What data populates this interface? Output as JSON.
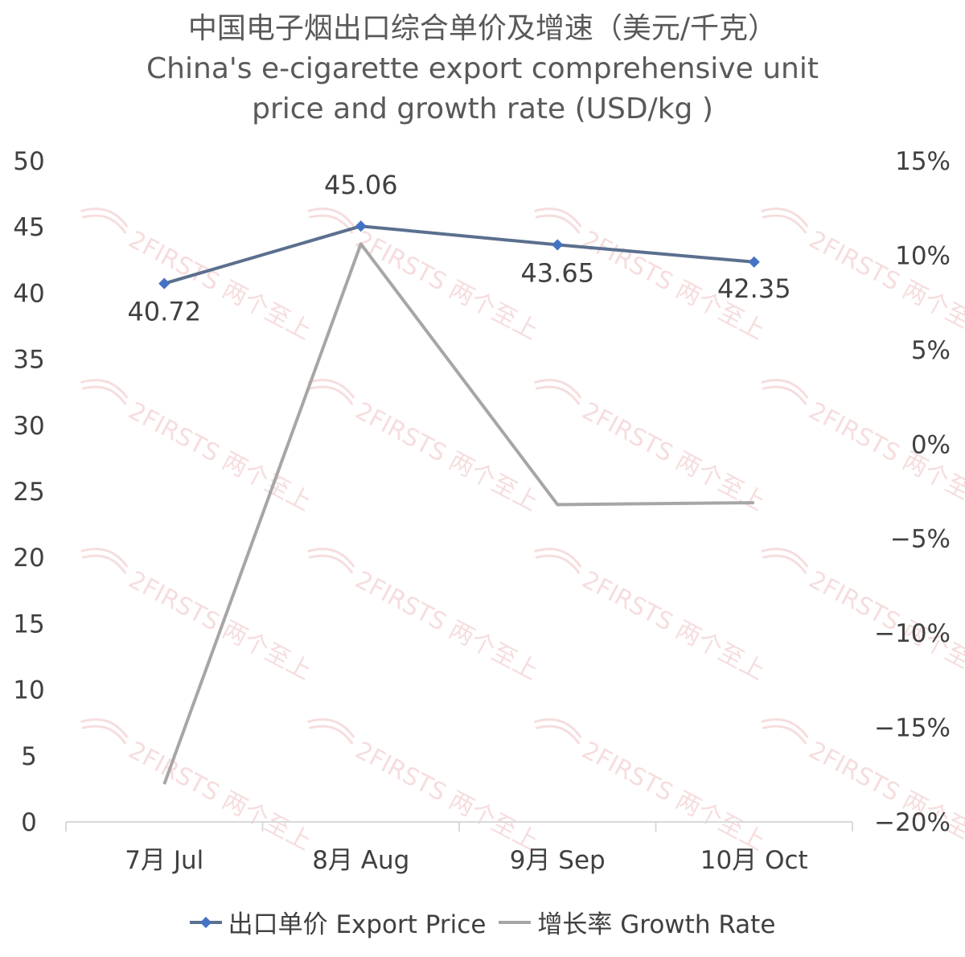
{
  "chart_data": {
    "type": "line",
    "title_zh": "中国电子烟出口综合单价及增速（美元/千克）",
    "title_en_line1": "China's e-cigarette export comprehensive unit",
    "title_en_line2": "price and growth rate (USD/kg )",
    "categories": [
      "7月 Jul",
      "8月 Aug",
      "9月 Sep",
      "10月 Oct"
    ],
    "series": [
      {
        "name": "出口单价 Export Price",
        "axis": "left",
        "values": [
          40.72,
          45.06,
          43.65,
          42.35
        ],
        "color": "#5b6f8f",
        "marker_color": "#4472c4",
        "data_labels": [
          "40.72",
          "45.06",
          "43.65",
          "42.35"
        ]
      },
      {
        "name": "增长率 Growth Rate",
        "axis": "right",
        "values": [
          -18.0,
          10.6,
          -3.2,
          -3.1
        ],
        "color": "#a6a6a6"
      }
    ],
    "y_left": {
      "min": 0,
      "max": 50,
      "step": 5,
      "ticks": [
        "0",
        "5",
        "10",
        "15",
        "20",
        "25",
        "30",
        "35",
        "40",
        "45",
        "50"
      ]
    },
    "y_right": {
      "min": -20,
      "max": 15,
      "step": 5,
      "ticks": [
        "−20%",
        "−15%",
        "−10%",
        "−5%",
        "0%",
        "5%",
        "10%",
        "15%"
      ]
    },
    "grid": false,
    "legend_position": "bottom",
    "watermark_text": "2FIRSTS 两个至上"
  }
}
